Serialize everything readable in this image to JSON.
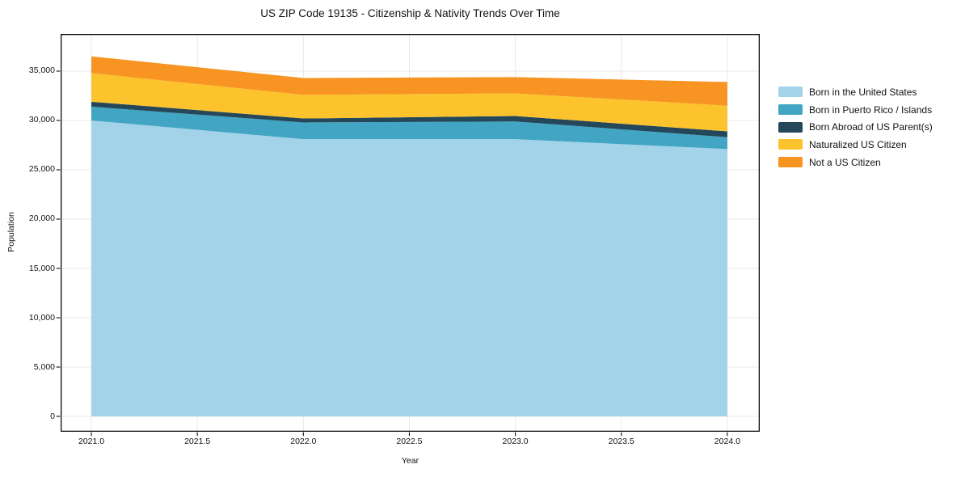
{
  "chart_data": {
    "type": "area",
    "stacked": true,
    "title": "US ZIP Code 19135 - Citizenship & Nativity Trends Over Time",
    "xlabel": "Year",
    "ylabel": "Population",
    "x": [
      2021,
      2022,
      2023,
      2024
    ],
    "x_ticks": [
      2021.0,
      2021.5,
      2022.0,
      2022.5,
      2023.0,
      2023.5,
      2024.0
    ],
    "x_tick_labels": [
      "2021.0",
      "2021.5",
      "2022.0",
      "2022.5",
      "2023.0",
      "2023.5",
      "2024.0"
    ],
    "y_ticks": [
      0,
      5000,
      10000,
      15000,
      20000,
      25000,
      30000,
      35000
    ],
    "y_tick_labels": [
      "0",
      "5,000",
      "10,000",
      "15,000",
      "20,000",
      "25,000",
      "30,000",
      "35,000"
    ],
    "xlim": [
      2020.855,
      2024.153
    ],
    "ylim": [
      -1557,
      38770
    ],
    "grid": true,
    "grid_color": "#e8e8e8",
    "spine_color": "#0a0a0a",
    "legend_position": "right",
    "series": [
      {
        "name": "Born in the United States",
        "color": "#a3d3e8",
        "values": [
          30000,
          28100,
          28100,
          27100
        ]
      },
      {
        "name": "Born in Puerto Rico / Islands",
        "color": "#41a5c3",
        "values": [
          1400,
          1700,
          1800,
          1200
        ]
      },
      {
        "name": "Born Abroad of US Parent(s)",
        "color": "#24475a",
        "values": [
          500,
          400,
          550,
          600
        ]
      },
      {
        "name": "Naturalized US Citizen",
        "color": "#fcc32d",
        "values": [
          2900,
          2400,
          2300,
          2600
        ]
      },
      {
        "name": "Not a US Citizen",
        "color": "#f79422",
        "values": [
          1700,
          1700,
          1650,
          2400
        ]
      }
    ],
    "totals_by_year": [
      36500,
      34300,
      34400,
      33900
    ]
  }
}
